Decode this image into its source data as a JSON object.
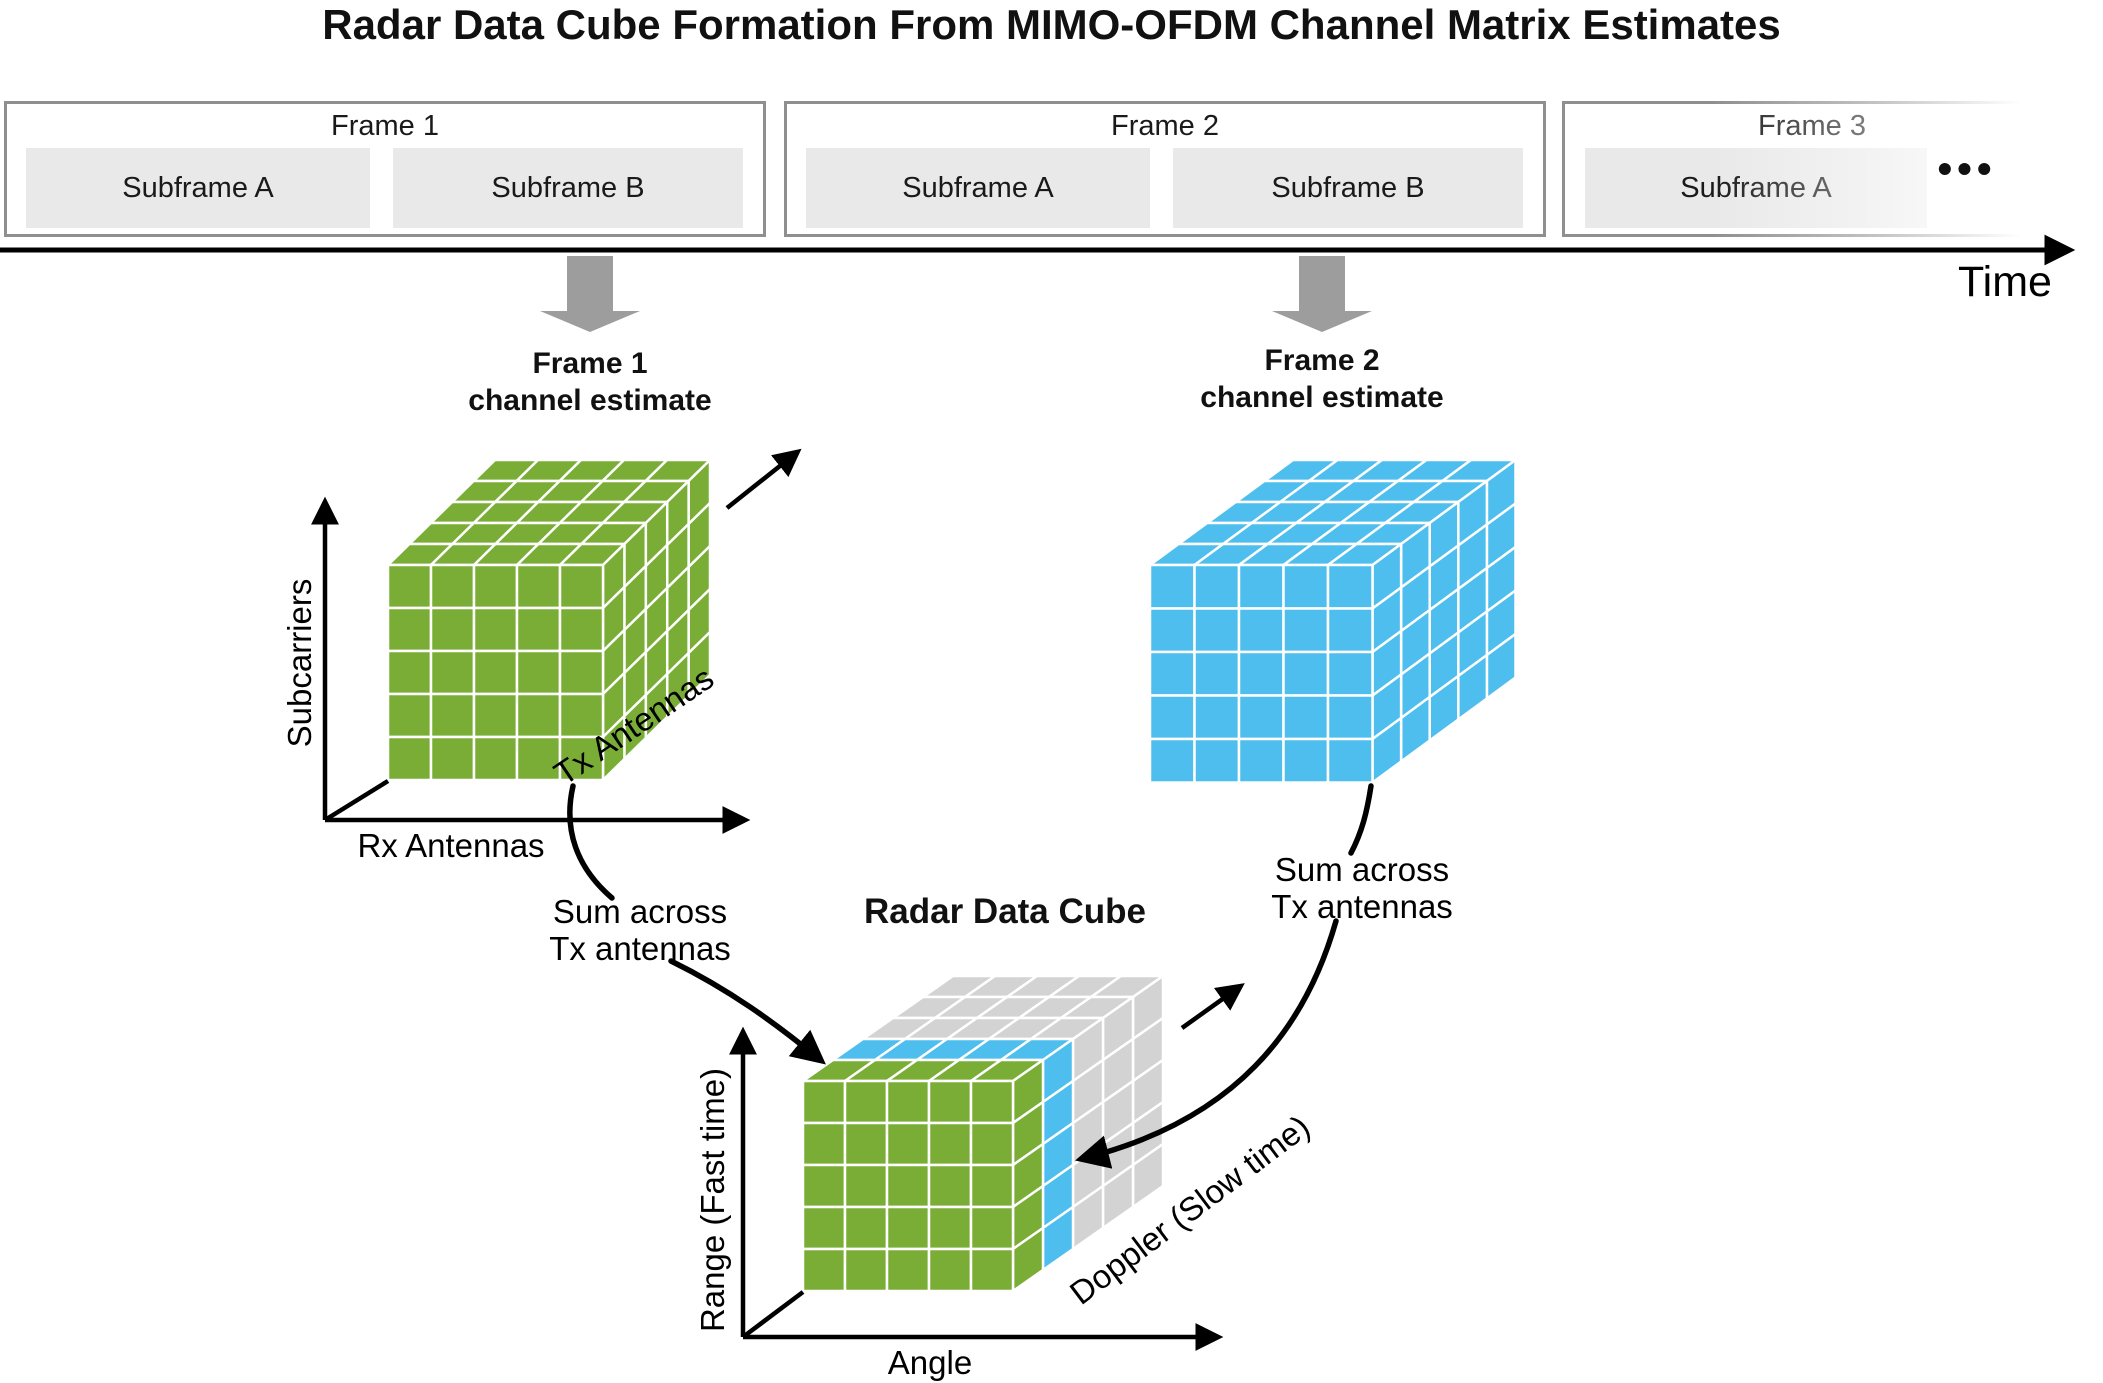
{
  "title": "Radar Data Cube Formation From MIMO-OFDM Channel Matrix Estimates",
  "timeline": {
    "frames": [
      {
        "label": "Frame 1",
        "subframes": [
          "Subframe A",
          "Subframe B"
        ]
      },
      {
        "label": "Frame 2",
        "subframes": [
          "Subframe A",
          "Subframe B"
        ]
      },
      {
        "label": "Frame 3",
        "subframes": [
          "Subframe A"
        ]
      }
    ],
    "ellipsis": "•••",
    "axis_label": "Time"
  },
  "estimates": [
    {
      "line1": "Frame 1",
      "line2": "channel estimate",
      "color": "#7aad36",
      "axes": {
        "y": "Subcarriers",
        "x": "Rx Antennas",
        "z": "Tx Antennas"
      }
    },
    {
      "line1": "Frame 2",
      "line2": "channel estimate",
      "color": "#4dbeee"
    }
  ],
  "radar_cube": {
    "title": "Radar Data Cube",
    "axes": {
      "y": "Range (Fast time)",
      "x": "Angle",
      "z": "Doppler (Slow time)"
    },
    "slice_colors": [
      "#7aad36",
      "#4dbeee",
      "#d3d3d3",
      "#d3d3d3",
      "#d3d3d3"
    ]
  },
  "annotations": {
    "sum_left": {
      "line1": "Sum across",
      "line2": "Tx antennas"
    },
    "sum_right": {
      "line1": "Sum across",
      "line2": "Tx antennas"
    }
  },
  "colors": {
    "frame_border": "#8f8f8f",
    "subframe_bg": "#e9e9e9",
    "block_arrow": "#9d9d9d",
    "line": "#000000",
    "cell_stroke": "#ffffff"
  }
}
